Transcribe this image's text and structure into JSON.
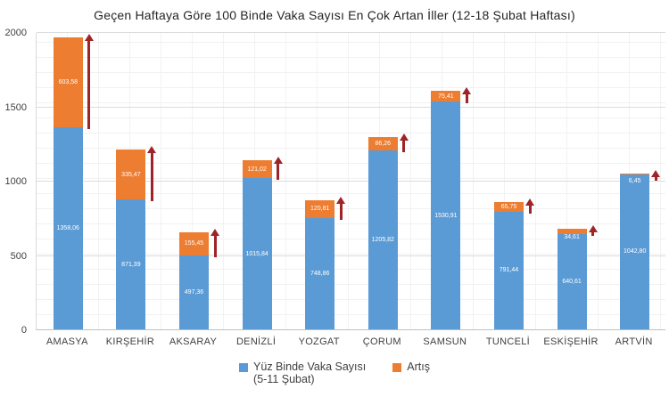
{
  "title": "Geçen Haftaya Göre 100 Binde Vaka Sayısı En Çok Artan İller (12-18 Şubat Haftası)",
  "chart_data": {
    "type": "bar",
    "stacked": true,
    "categories": [
      "AMASYA",
      "KIRŞEHİR",
      "AKSARAY",
      "DENİZLİ",
      "YOZGAT",
      "ÇORUM",
      "SAMSUN",
      "TUNCELİ",
      "ESKİŞEHİR",
      "ARTVİN"
    ],
    "series": [
      {
        "name": "Yüz Binde Vaka Sayısı (5-11 Şubat)",
        "color": "#5b9bd5",
        "values": [
          1358.06,
          871.39,
          497.36,
          1015.84,
          748.86,
          1205.82,
          1530.91,
          791.44,
          640.61,
          1042.8
        ],
        "labels": [
          "1358,06",
          "871,39",
          "497,36",
          "1015,84",
          "748,86",
          "1205,82",
          "1530,91",
          "791,44",
          "640,61",
          "1042,80"
        ]
      },
      {
        "name": "Artış",
        "color": "#ed7d31",
        "values": [
          603.58,
          335.47,
          155.45,
          121.02,
          120.81,
          86.26,
          75.41,
          65.75,
          34.61,
          6.45
        ],
        "labels": [
          "603,58",
          "335,47",
          "155,45",
          "121,02",
          "120,81",
          "86,26",
          "75,41",
          "65,75",
          "34,61",
          "6,45"
        ]
      }
    ],
    "ylim": [
      0,
      2000
    ],
    "yticks": [
      0,
      500,
      1000,
      1500,
      2000
    ],
    "grid": true,
    "legend_position": "bottom",
    "arrow_color": "#9e2428",
    "title": "Geçen Haftaya Göre 100 Binde Vaka Sayısı En Çok Artan İller (12-18 Şubat Haftası)"
  },
  "legend": {
    "series1_label": "Yüz Binde Vaka Sayısı",
    "series1_sub": "(5-11 Şubat)",
    "series2_label": "Artış"
  }
}
